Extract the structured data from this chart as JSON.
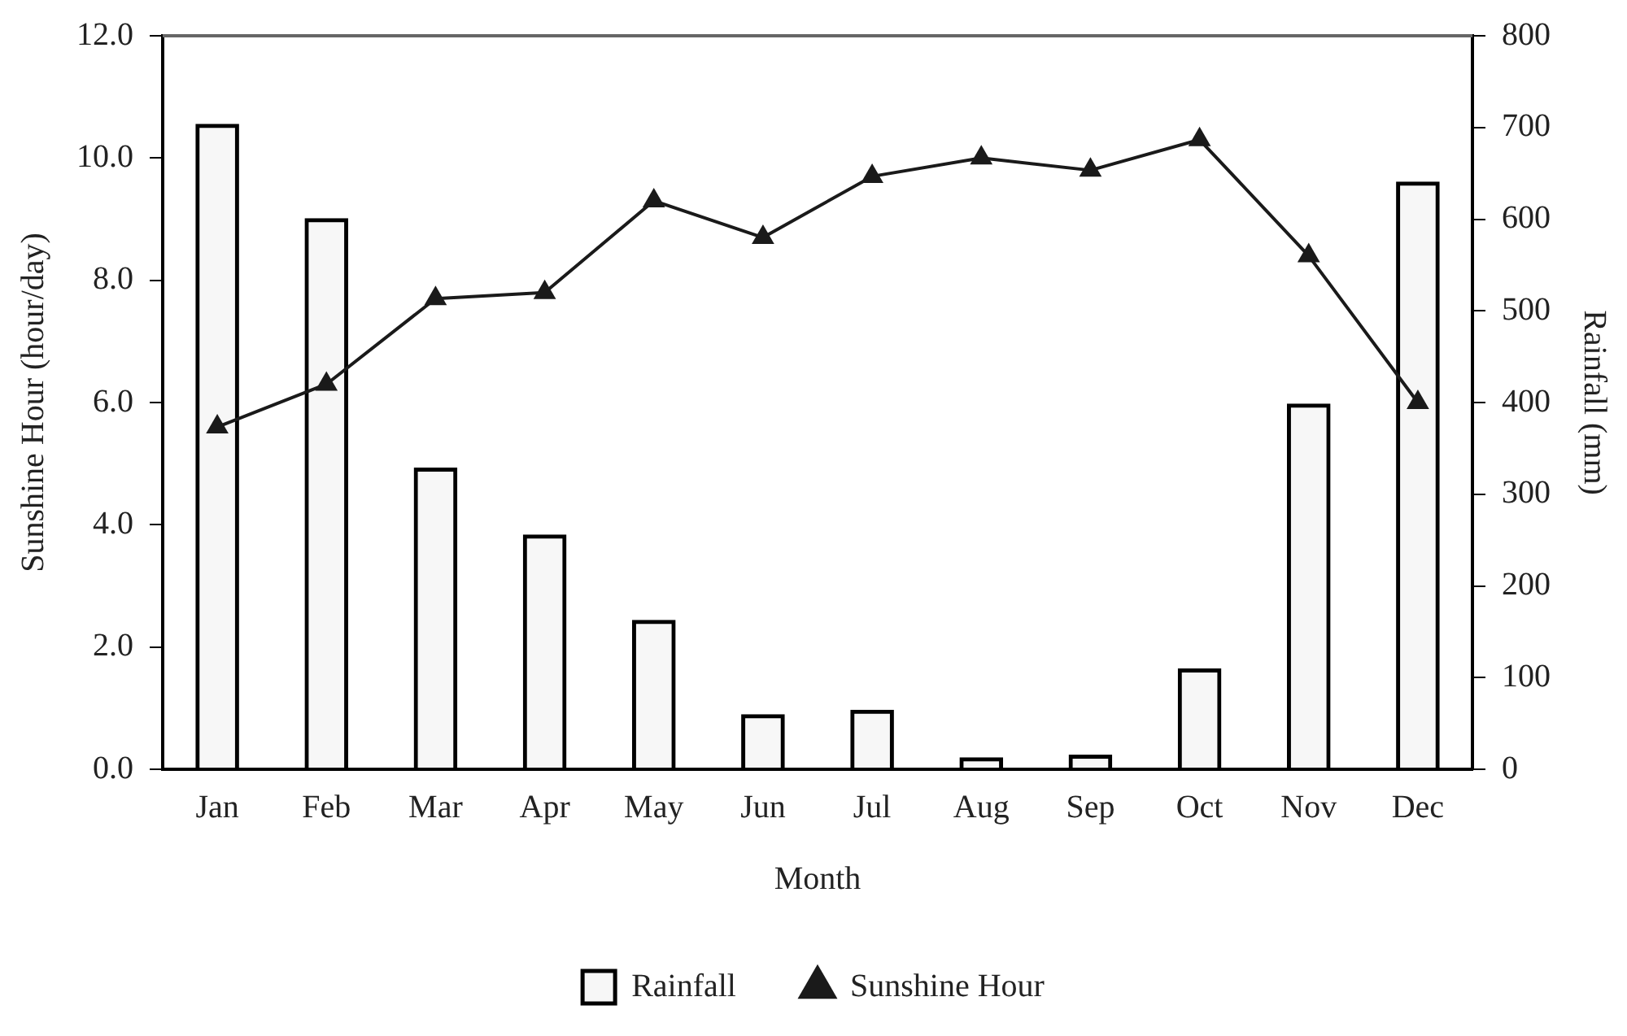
{
  "chart_data": {
    "type": "bar",
    "xlabel": "Month",
    "ylabel": "Sunshine Hour (hour/day)",
    "y2label": "Rainfall (mm)",
    "categories": [
      "Jan",
      "Feb",
      "Mar",
      "Apr",
      "May",
      "Jun",
      "Jul",
      "Aug",
      "Sep",
      "Oct",
      "Nov",
      "Dec"
    ],
    "series": [
      {
        "name": "Rainfall",
        "axis": "y2",
        "color": "#000000",
        "values": [
          704,
          601,
          329,
          256,
          163,
          60,
          65,
          13,
          16,
          110,
          399,
          641
        ]
      },
      {
        "name": "Sunshine Hour",
        "type": "line",
        "color": "#1a1a1a",
        "marker": "triangle",
        "values": [
          5.6,
          6.3,
          7.7,
          7.8,
          9.3,
          8.7,
          9.7,
          10.0,
          9.8,
          10.3,
          8.4,
          6.0
        ]
      }
    ],
    "ylim": [
      0,
      12
    ],
    "yticks": [
      {
        "value": 0,
        "label": "0.0"
      },
      {
        "value": 2,
        "label": "2.0"
      },
      {
        "value": 4,
        "label": "4.0"
      },
      {
        "value": 6,
        "label": "6.0"
      },
      {
        "value": 8,
        "label": "8.0"
      },
      {
        "value": 10,
        "label": "10.0"
      },
      {
        "value": 12,
        "label": "12.0"
      }
    ],
    "y2lim": [
      0,
      800
    ],
    "y2ticks": [
      0,
      100,
      200,
      300,
      400,
      500,
      600,
      700,
      800
    ],
    "grid": false,
    "legend": "bottom"
  }
}
